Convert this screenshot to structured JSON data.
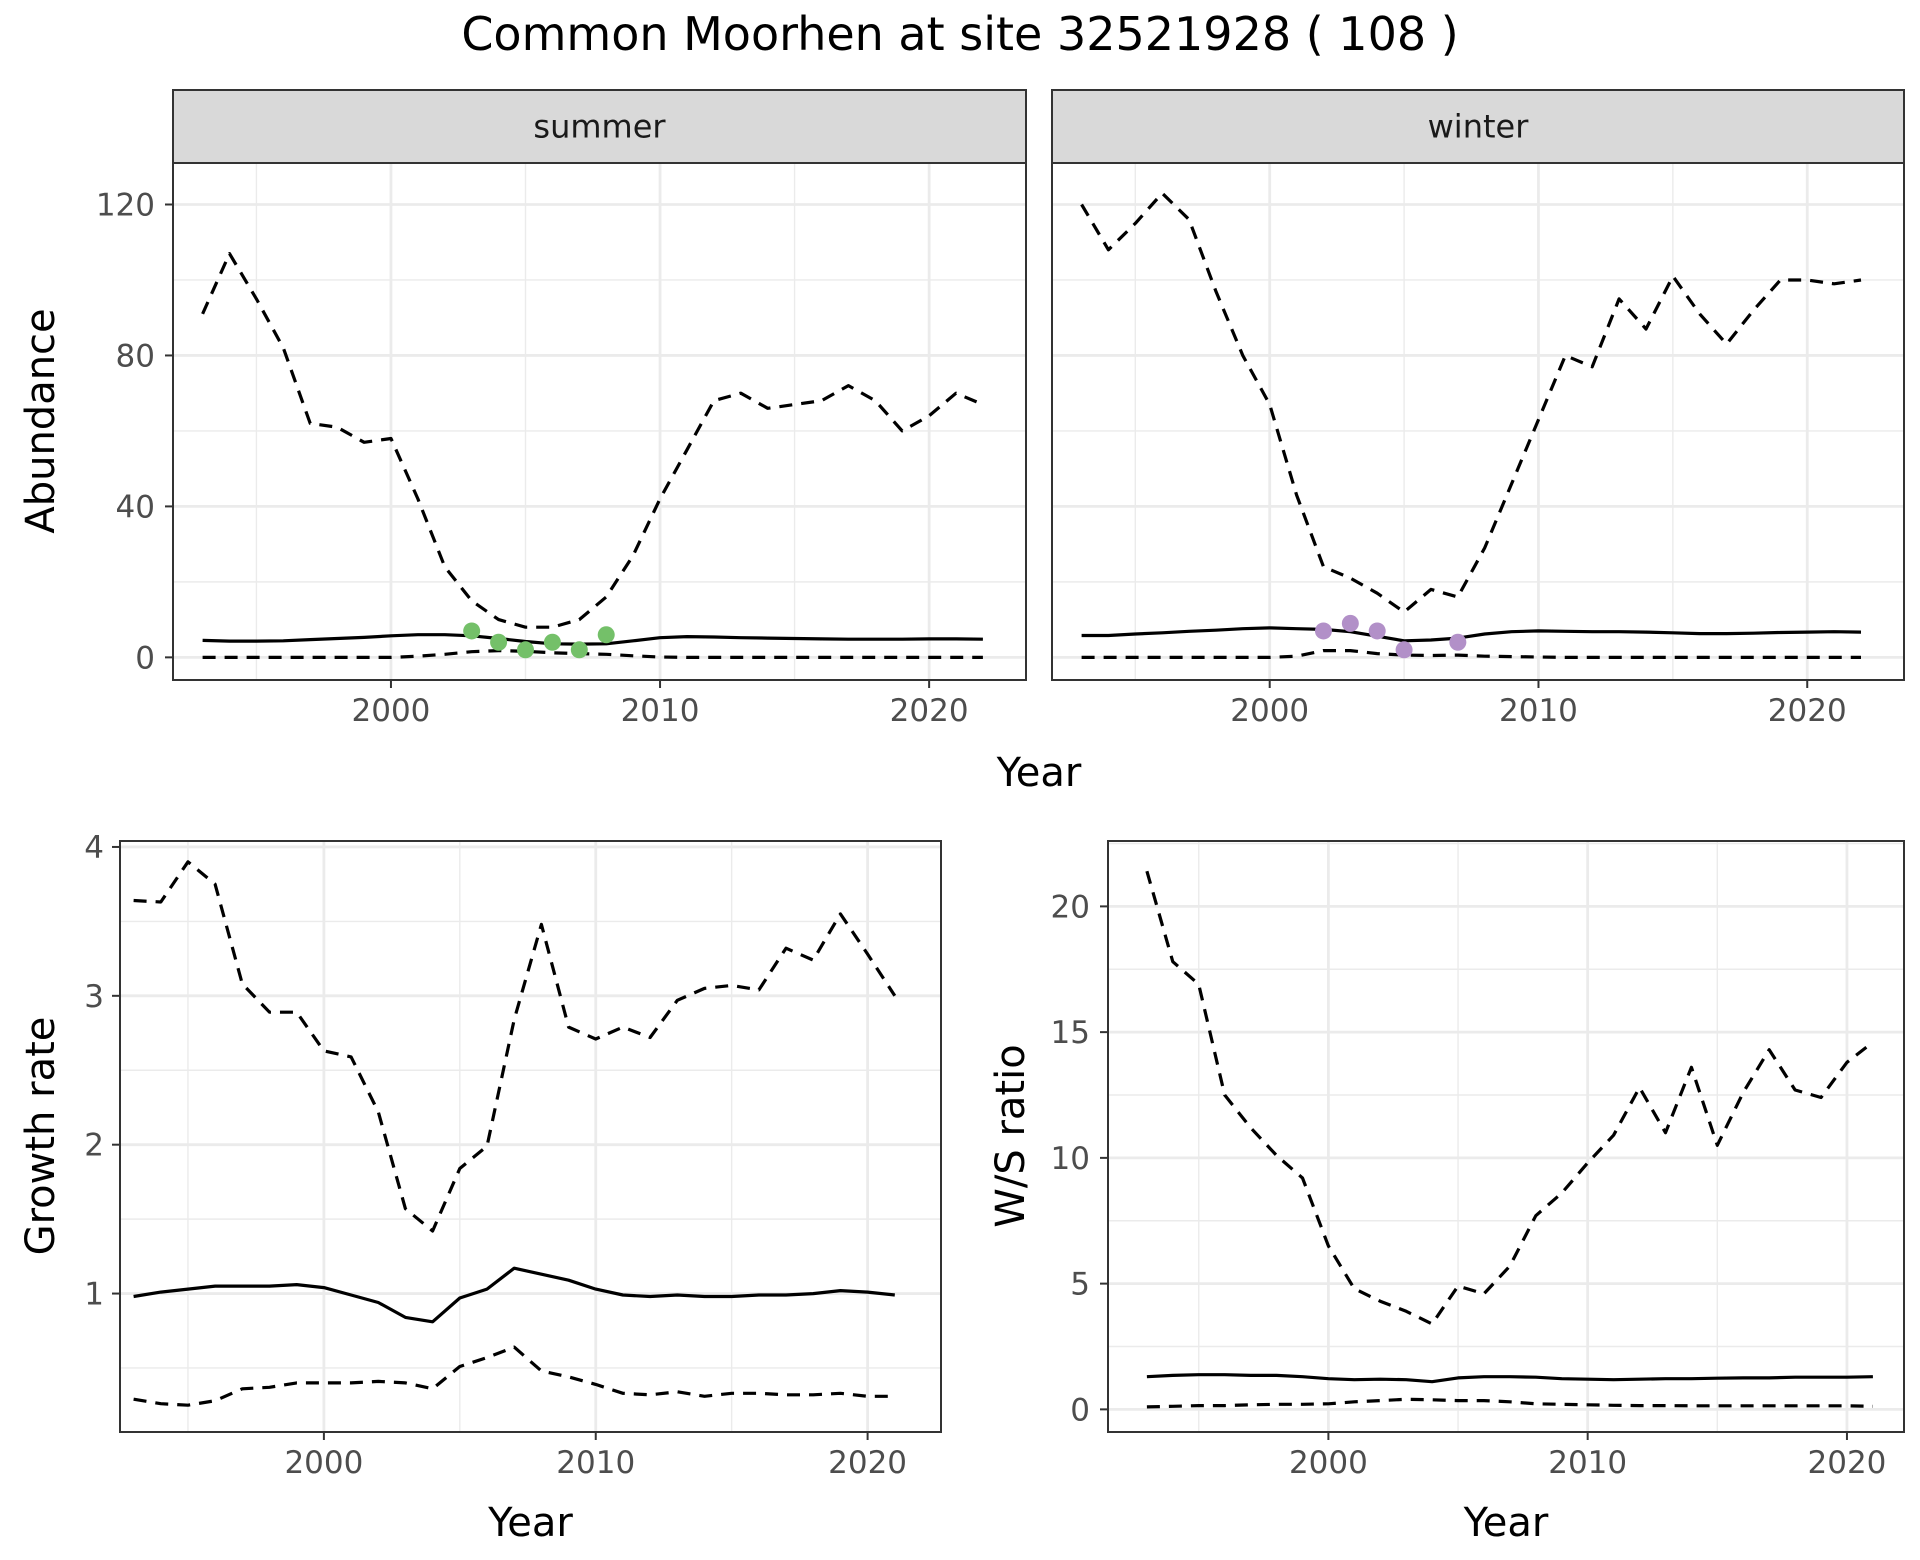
{
  "figure": {
    "title": "Common Moorhen at site 32521928 ( 108 )"
  },
  "colors": {
    "summer_points": "#74c069",
    "winter_points": "#b290c8",
    "line": "#000000",
    "grid": "#ebebeb",
    "strip_fill": "#d9d9d9"
  },
  "chart_data": [
    {
      "type": "line",
      "facet": "summer",
      "ylabel": "Abundance",
      "xlabel": "Year",
      "xlim": [
        1991.9,
        2023.6
      ],
      "ylim": [
        -6,
        131
      ],
      "xticks": [
        2000,
        2010,
        2020
      ],
      "yticks": [
        0,
        40,
        80,
        120
      ],
      "point_color_key": "summer_points",
      "series": [
        {
          "style": "solid",
          "x": [
            1993,
            1994,
            1995,
            1996,
            1997,
            1998,
            1999,
            2000,
            2001,
            2002,
            2003,
            2004,
            2005,
            2006,
            2007,
            2008,
            2009,
            2010,
            2011,
            2012,
            2013,
            2014,
            2015,
            2016,
            2017,
            2018,
            2019,
            2020,
            2021,
            2022
          ],
          "y": [
            4.5,
            4.3,
            4.3,
            4.4,
            4.7,
            5,
            5.3,
            5.7,
            6,
            6,
            5.7,
            5,
            4.2,
            3.6,
            3.5,
            3.6,
            4.4,
            5.2,
            5.5,
            5.4,
            5.2,
            5.1,
            5,
            4.9,
            4.8,
            4.8,
            4.8,
            4.9,
            4.9,
            4.8
          ]
        },
        {
          "style": "dashed",
          "x": [
            1993,
            1994,
            1995,
            1996,
            1997,
            1998,
            1999,
            2000,
            2001,
            2002,
            2003,
            2004,
            2005,
            2006,
            2007,
            2008,
            2009,
            2010,
            2011,
            2012,
            2013,
            2014,
            2015,
            2016,
            2017,
            2018,
            2019,
            2020,
            2021,
            2022
          ],
          "y": [
            91,
            107,
            95,
            82,
            62,
            61,
            57,
            58,
            42,
            24,
            15,
            10,
            8,
            8,
            10,
            16,
            27,
            42,
            55,
            68,
            70,
            66,
            67,
            68,
            72,
            68,
            60,
            64,
            70,
            67
          ]
        },
        {
          "style": "dashed",
          "x": [
            1993,
            1994,
            1995,
            1996,
            1997,
            1998,
            1999,
            2000,
            2001,
            2002,
            2003,
            2004,
            2005,
            2006,
            2007,
            2008,
            2009,
            2010,
            2011,
            2012,
            2013,
            2014,
            2015,
            2016,
            2017,
            2018,
            2019,
            2020,
            2021,
            2022
          ],
          "y": [
            0,
            0,
            0,
            0,
            0,
            0,
            0,
            0,
            0.3,
            0.8,
            1.5,
            1.8,
            1.6,
            1.2,
            1,
            0.8,
            0.4,
            0.1,
            0,
            0,
            0,
            0,
            0,
            0,
            0,
            0,
            0,
            0,
            0,
            0
          ]
        }
      ],
      "points": {
        "x": [
          2003,
          2004,
          2005,
          2006,
          2007,
          2008
        ],
        "y": [
          7,
          4,
          2,
          4,
          2,
          6
        ]
      }
    },
    {
      "type": "line",
      "facet": "winter",
      "ylabel": "",
      "xlabel": "Year",
      "xlim": [
        1991.9,
        2023.6
      ],
      "ylim": [
        -6,
        131
      ],
      "xticks": [
        2000,
        2010,
        2020
      ],
      "yticks": [
        0,
        40,
        80,
        120
      ],
      "point_color_key": "winter_points",
      "series": [
        {
          "style": "solid",
          "x": [
            1993,
            1994,
            1995,
            1996,
            1997,
            1998,
            1999,
            2000,
            2001,
            2002,
            2003,
            2004,
            2005,
            2006,
            2007,
            2008,
            2009,
            2010,
            2011,
            2012,
            2013,
            2014,
            2015,
            2016,
            2017,
            2018,
            2019,
            2020,
            2021,
            2022
          ],
          "y": [
            5.8,
            5.8,
            6.2,
            6.5,
            6.9,
            7.2,
            7.6,
            7.8,
            7.6,
            7.4,
            6.8,
            5.6,
            4.4,
            4.6,
            5.1,
            6.2,
            6.8,
            7,
            6.9,
            6.8,
            6.8,
            6.7,
            6.5,
            6.3,
            6.3,
            6.4,
            6.6,
            6.7,
            6.8,
            6.7
          ]
        },
        {
          "style": "dashed",
          "x": [
            1993,
            1994,
            1995,
            1996,
            1997,
            1998,
            1999,
            2000,
            2001,
            2002,
            2003,
            2004,
            2005,
            2006,
            2007,
            2008,
            2009,
            2010,
            2011,
            2012,
            2013,
            2014,
            2015,
            2016,
            2017,
            2018,
            2019,
            2020,
            2021,
            2022
          ],
          "y": [
            120,
            108,
            115,
            123,
            116,
            97,
            80,
            67,
            43,
            24,
            21,
            17,
            12,
            18,
            16,
            29,
            46,
            63,
            80,
            77,
            95,
            87,
            101,
            91,
            83,
            92,
            100,
            100,
            99,
            100
          ]
        },
        {
          "style": "dashed",
          "x": [
            1993,
            1994,
            1995,
            1996,
            1997,
            1998,
            1999,
            2000,
            2001,
            2002,
            2003,
            2004,
            2005,
            2006,
            2007,
            2008,
            2009,
            2010,
            2011,
            2012,
            2013,
            2014,
            2015,
            2016,
            2017,
            2018,
            2019,
            2020,
            2021,
            2022
          ],
          "y": [
            0,
            0,
            0,
            0,
            0,
            0,
            0,
            0,
            0.3,
            1.8,
            1.8,
            1,
            0.6,
            0.5,
            0.6,
            0.3,
            0.2,
            0.1,
            0,
            0,
            0,
            0,
            0,
            0,
            0,
            0,
            0,
            0,
            0,
            0
          ]
        }
      ],
      "points": {
        "x": [
          2002,
          2003,
          2004,
          2005,
          2007
        ],
        "y": [
          7,
          9,
          7,
          2,
          4
        ]
      }
    },
    {
      "type": "line",
      "ylabel": "Growth rate",
      "xlabel": "Year",
      "xlim": [
        1992.5,
        2022.7
      ],
      "ylim": [
        0.07,
        4.04
      ],
      "xticks": [
        2000,
        2010,
        2020
      ],
      "yticks": [
        1,
        2,
        3,
        4
      ],
      "series": [
        {
          "style": "solid",
          "x": [
            1993,
            1994,
            1995,
            1996,
            1997,
            1998,
            1999,
            2000,
            2001,
            2002,
            2003,
            2004,
            2005,
            2006,
            2007,
            2008,
            2009,
            2010,
            2011,
            2012,
            2013,
            2014,
            2015,
            2016,
            2017,
            2018,
            2019,
            2020,
            2021
          ],
          "y": [
            0.98,
            1.01,
            1.03,
            1.05,
            1.05,
            1.05,
            1.06,
            1.04,
            0.99,
            0.94,
            0.84,
            0.81,
            0.97,
            1.03,
            1.17,
            1.13,
            1.09,
            1.03,
            0.99,
            0.98,
            0.99,
            0.98,
            0.98,
            0.99,
            0.99,
            1,
            1.02,
            1.01,
            0.99
          ]
        },
        {
          "style": "dashed",
          "x": [
            1993,
            1994,
            1995,
            1996,
            1997,
            1998,
            1999,
            2000,
            2001,
            2002,
            2003,
            2004,
            2005,
            2006,
            2007,
            2008,
            2009,
            2010,
            2011,
            2012,
            2013,
            2014,
            2015,
            2016,
            2017,
            2018,
            2019,
            2020,
            2021
          ],
          "y": [
            3.64,
            3.63,
            3.9,
            3.75,
            3.08,
            2.89,
            2.89,
            2.63,
            2.59,
            2.22,
            1.57,
            1.42,
            1.84,
            1.99,
            2.84,
            3.48,
            2.79,
            2.71,
            2.79,
            2.72,
            2.97,
            3.05,
            3.07,
            3.04,
            3.32,
            3.24,
            3.55,
            3.28,
            3
          ]
        },
        {
          "style": "dashed",
          "x": [
            1993,
            1994,
            1995,
            1996,
            1997,
            1998,
            1999,
            2000,
            2001,
            2002,
            2003,
            2004,
            2005,
            2006,
            2007,
            2008,
            2009,
            2010,
            2011,
            2012,
            2013,
            2014,
            2015,
            2016,
            2017,
            2018,
            2019,
            2020,
            2021
          ],
          "y": [
            0.29,
            0.26,
            0.25,
            0.28,
            0.36,
            0.37,
            0.4,
            0.4,
            0.4,
            0.41,
            0.4,
            0.36,
            0.51,
            0.57,
            0.64,
            0.48,
            0.44,
            0.39,
            0.33,
            0.32,
            0.34,
            0.31,
            0.33,
            0.33,
            0.32,
            0.32,
            0.33,
            0.31,
            0.31
          ]
        }
      ]
    },
    {
      "type": "line",
      "ylabel": "W/S ratio",
      "xlabel": "Year",
      "xlim": [
        1991.5,
        2022.2
      ],
      "ylim": [
        -0.9,
        22.6
      ],
      "xticks": [
        2000,
        2010,
        2020
      ],
      "yticks": [
        0,
        5,
        10,
        15,
        20
      ],
      "series": [
        {
          "style": "solid",
          "x": [
            1993,
            1994,
            1995,
            1996,
            1997,
            1998,
            1999,
            2000,
            2001,
            2002,
            2003,
            2004,
            2005,
            2006,
            2007,
            2008,
            2009,
            2010,
            2011,
            2012,
            2013,
            2014,
            2015,
            2016,
            2017,
            2018,
            2019,
            2020,
            2021
          ],
          "y": [
            1.3,
            1.35,
            1.38,
            1.38,
            1.35,
            1.35,
            1.3,
            1.22,
            1.18,
            1.2,
            1.18,
            1.1,
            1.25,
            1.3,
            1.3,
            1.28,
            1.22,
            1.2,
            1.18,
            1.2,
            1.22,
            1.22,
            1.24,
            1.25,
            1.25,
            1.28,
            1.28,
            1.28,
            1.3
          ]
        },
        {
          "style": "dashed",
          "x": [
            1993,
            1994,
            1995,
            1996,
            1997,
            1998,
            1999,
            2000,
            2001,
            2002,
            2003,
            2004,
            2005,
            2006,
            2007,
            2008,
            2009,
            2010,
            2011,
            2012,
            2013,
            2014,
            2015,
            2016,
            2017,
            2018,
            2019,
            2020,
            2021
          ],
          "y": [
            21.4,
            17.8,
            16.9,
            12.5,
            11.2,
            10.1,
            9.2,
            6.5,
            4.8,
            4.3,
            3.9,
            3.4,
            4.9,
            4.6,
            5.7,
            7.7,
            8.6,
            9.8,
            10.9,
            12.8,
            11,
            13.6,
            10.5,
            12.6,
            14.3,
            12.7,
            12.4,
            13.8,
            14.6
          ]
        },
        {
          "style": "dashed",
          "x": [
            1993,
            1994,
            1995,
            1996,
            1997,
            1998,
            1999,
            2000,
            2001,
            2002,
            2003,
            2004,
            2005,
            2006,
            2007,
            2008,
            2009,
            2010,
            2011,
            2012,
            2013,
            2014,
            2015,
            2016,
            2017,
            2018,
            2019,
            2020,
            2021
          ],
          "y": [
            0.1,
            0.12,
            0.15,
            0.15,
            0.18,
            0.2,
            0.2,
            0.22,
            0.3,
            0.35,
            0.4,
            0.38,
            0.35,
            0.35,
            0.3,
            0.22,
            0.2,
            0.18,
            0.16,
            0.15,
            0.15,
            0.14,
            0.14,
            0.14,
            0.14,
            0.14,
            0.14,
            0.14,
            0.12
          ]
        }
      ]
    }
  ]
}
